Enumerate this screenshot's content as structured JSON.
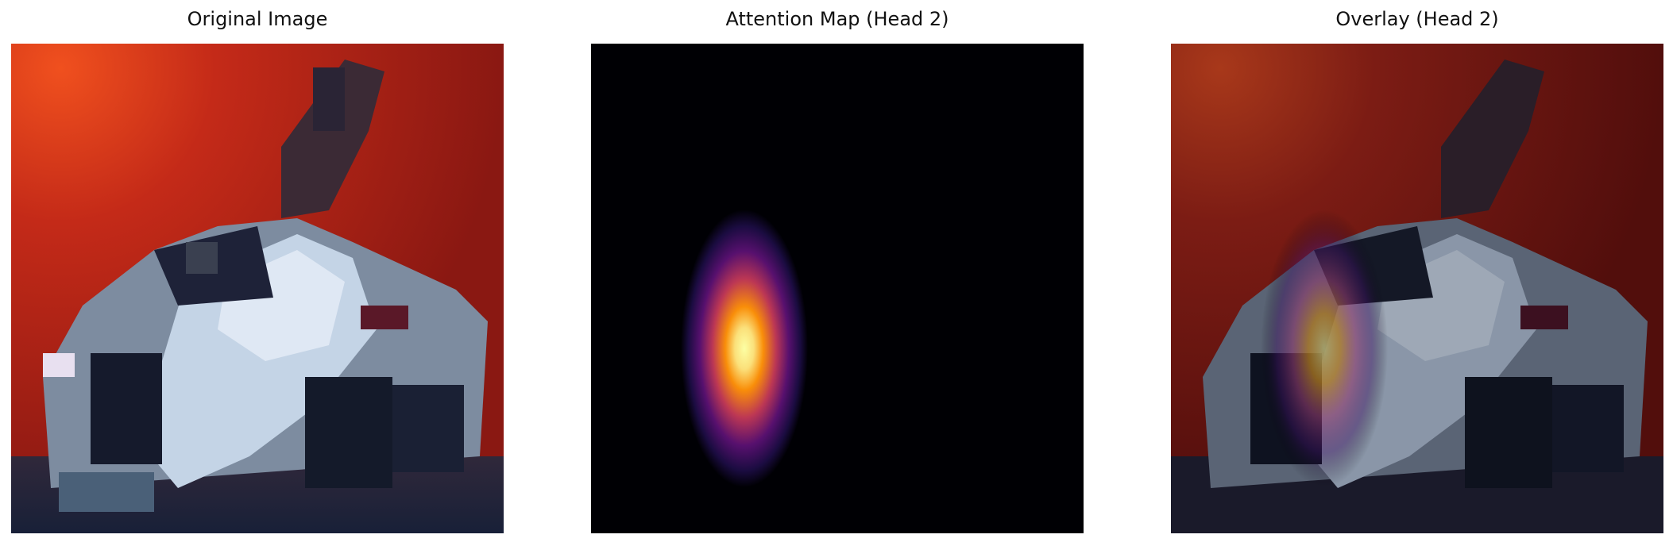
{
  "figure": {
    "panels": [
      {
        "title": "Original Image"
      },
      {
        "title": "Attention Map (Head 2)"
      },
      {
        "title": "Overlay (Head 2)"
      }
    ]
  }
}
